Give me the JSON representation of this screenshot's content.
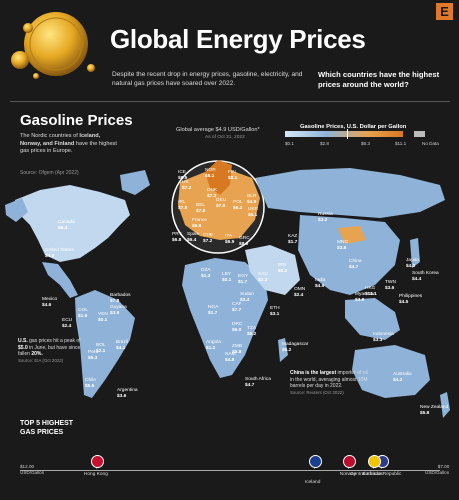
{
  "header": {
    "title": "Global Energy Prices",
    "logo_letter": "E",
    "intro": "Despite the recent drop in energy prices, gasoline, electricity, and natural gas prices have soared over 2022.",
    "question": "Which countries have the highest prices around the world?"
  },
  "section": {
    "title": "Gasoline Prices",
    "subtitle_pre": "The Nordic countries of ",
    "subtitle_bold": "Iceland, Norway, and Finland",
    "subtitle_post": " have the highest gas prices in Europe.",
    "source": "Source: Ofgem (Apr 2022)"
  },
  "global_avg": {
    "label": "Global average $4.9 USD/Gallon*",
    "date": "As of Oct 31, 2022"
  },
  "legend": {
    "title": "Gasoline Prices, U.S. Dollar per Gallon",
    "ticks": [
      "$0.1",
      "$2.8",
      "$8.3",
      "$11.1"
    ],
    "no_data": "No Data",
    "colors": [
      "#d6e8f6",
      "#8fb3d8",
      "#e8a350",
      "#d77920"
    ]
  },
  "callouts": {
    "us": {
      "pre": "U.S.",
      "mid": " gas prices hit a peak of ",
      "bold": "$5.0",
      "post": " in June, but have since fallen ",
      "bold2": "20%.",
      "source": "Source: EIA (Oct 2022)"
    },
    "china": {
      "bold": "China is the largest",
      "post": " importer of oil in the world, averaging almost 10M barrels per day in 2022.",
      "source": "Source: Reuters (Oct 2022)"
    }
  },
  "countries": [
    {
      "name": "Canada",
      "value": "$5.4"
    },
    {
      "name": "United States",
      "value": "$4.0"
    },
    {
      "name": "Mexico",
      "value": "$4.6"
    },
    {
      "name": "Barbados",
      "value": "$7.8"
    },
    {
      "name": "Guyana",
      "value": "$3.9"
    },
    {
      "name": "COL",
      "value": "$1.9"
    },
    {
      "name": "VEN",
      "value": "$0.1"
    },
    {
      "name": "ECU",
      "value": "$2.4"
    },
    {
      "name": "Peru",
      "value": "$5.3"
    },
    {
      "name": "BOL",
      "value": "$2.1"
    },
    {
      "name": "Brazil",
      "value": "$4.1"
    },
    {
      "name": "Chile",
      "value": "$5.5"
    },
    {
      "name": "Argentina",
      "value": "$3.6"
    },
    {
      "name": "Russia",
      "value": "$3.2"
    },
    {
      "name": "KAZ",
      "value": "$1.7"
    },
    {
      "name": "MNG",
      "value": "$3.6"
    },
    {
      "name": "China",
      "value": "$4.7"
    },
    {
      "name": "Japan",
      "value": "$4.2"
    },
    {
      "name": "South Korea",
      "value": "$4.4"
    },
    {
      "name": "TWN",
      "value": "$3.6"
    },
    {
      "name": "HKG",
      "value": "$11.1"
    },
    {
      "name": "Philippines",
      "value": "$4.5"
    },
    {
      "name": "India",
      "value": "$4.9"
    },
    {
      "name": "Myanmar",
      "value": "$3.8"
    },
    {
      "name": "Indonesia",
      "value": "$3.3"
    },
    {
      "name": "Australia",
      "value": "$4.2"
    },
    {
      "name": "New Zealand",
      "value": "$5.8"
    },
    {
      "name": "SAU",
      "value": "$2.3"
    },
    {
      "name": "IRN",
      "value": "$0.2"
    },
    {
      "name": "OMN",
      "value": "$2.4"
    },
    {
      "name": "DZA",
      "value": "$1.3"
    },
    {
      "name": "LBY",
      "value": "$0.1"
    },
    {
      "name": "EGY",
      "value": "$1.7"
    },
    {
      "name": "Sudan",
      "value": "$3.4"
    },
    {
      "name": "NGA",
      "value": "$1.7"
    },
    {
      "name": "CAF",
      "value": "$7.7"
    },
    {
      "name": "ETH",
      "value": "$3.1"
    },
    {
      "name": "DRC",
      "value": "$5.0"
    },
    {
      "name": "TZA",
      "value": "$5.2"
    },
    {
      "name": "Angola",
      "value": "$1.2"
    },
    {
      "name": "ZMB",
      "value": "$5.8"
    },
    {
      "name": "NAM",
      "value": "$4.8"
    },
    {
      "name": "Madagascar",
      "value": "$5.2"
    },
    {
      "name": "South Africa",
      "value": "$4.7"
    }
  ],
  "europe": [
    {
      "name": "ICE",
      "value": "$8.5"
    },
    {
      "name": "NOR",
      "value": "$8.1"
    },
    {
      "name": "FIN",
      "value": "$8.1"
    },
    {
      "name": "UK",
      "value": "$7.2"
    },
    {
      "name": "IRL",
      "value": "$7.0"
    },
    {
      "name": "DNK",
      "value": "$7.3"
    },
    {
      "name": "BEL",
      "value": "$7.8"
    },
    {
      "name": "DEU",
      "value": "$7.0"
    },
    {
      "name": "POL",
      "value": "$6.3"
    },
    {
      "name": "BLR",
      "value": "$4.9"
    },
    {
      "name": "UKR",
      "value": "$5.1"
    },
    {
      "name": "France",
      "value": "$6.8"
    },
    {
      "name": "Spain",
      "value": "$6.4"
    },
    {
      "name": "PRT",
      "value": "$6.8"
    },
    {
      "name": "CHE",
      "value": "$7.2"
    },
    {
      "name": "ITA",
      "value": "$6.9"
    },
    {
      "name": "GRC",
      "value": "$8.0"
    }
  ],
  "top5": {
    "title_line1": "TOP 5 HIGHEST",
    "title_line2": "GAS PRICES",
    "axis_left": "$12.00",
    "axis_left_unit": "USD/Gallon",
    "axis_right": "$7.00",
    "axis_right_unit": "USD/Gallon"
  },
  "chart_data": {
    "type": "bar",
    "title": "Top 5 Highest Gas Prices",
    "categories": [
      "Hong Kong",
      "Central African Republic",
      "Iceland",
      "Norway",
      "Barbados"
    ],
    "values": [
      11.1,
      7.7,
      8.5,
      8.1,
      7.8
    ],
    "xlim": [
      12.0,
      7.0
    ],
    "unit": "USD/Gallon",
    "flag_colors": [
      "#c8102e",
      "#2d3a8c",
      "#1b3f8f",
      "#ba0c2f",
      "#f4c300"
    ]
  }
}
